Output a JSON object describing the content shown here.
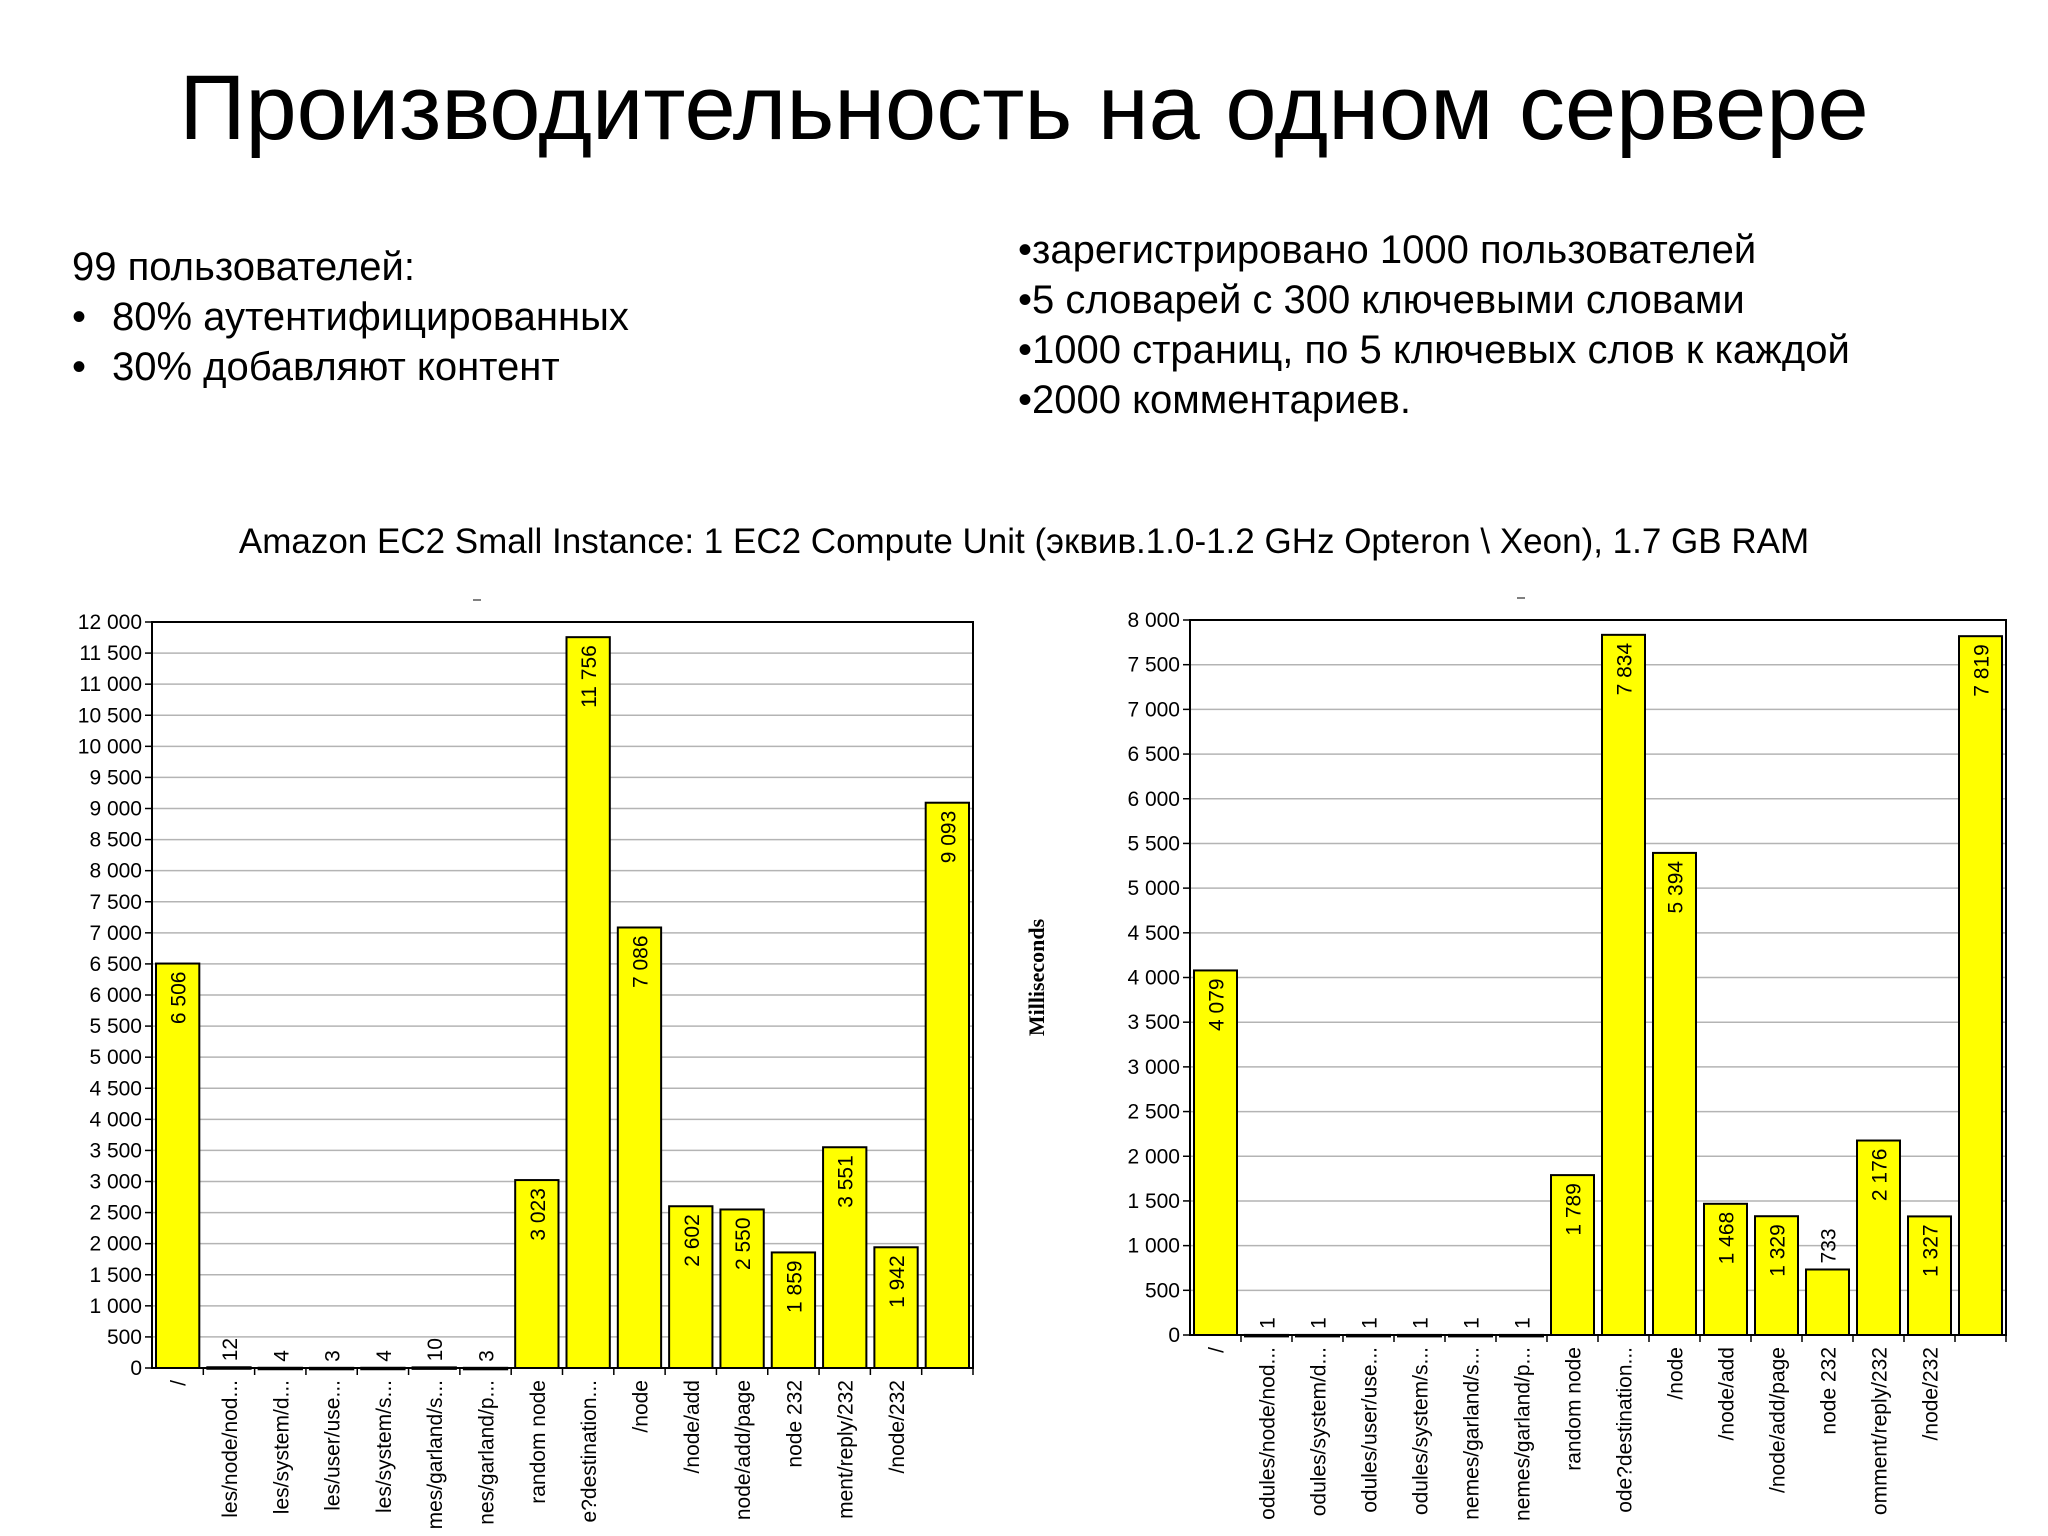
{
  "title": "Производительность на одном сервере",
  "left_list": {
    "heading": "99 пользователей:",
    "items": [
      "80% аутентифицированных",
      "30% добавляют контент"
    ]
  },
  "right_list": {
    "items": [
      "•зарегистрировано 1000 пользователей",
      "•5 словарей с 300 ключевыми словами",
      "•1000 страниц, по 5 ключевых слов к каждой",
      "•2000 комментариев."
    ]
  },
  "subtitle": "Amazon EC2 Small Instance: 1 EC2 Compute Unit (эквив.1.0-1.2 GHz Opteron \\ Xeon), 1.7 GB RAM",
  "colors": {
    "bar": "#ffff00",
    "grid": "#b4b4b4"
  },
  "chart_data": [
    {
      "type": "bar",
      "title": "",
      "xlabel": "",
      "ylabel": "",
      "ylim": [
        0,
        12000
      ],
      "ytick_step": 500,
      "grid": true,
      "categories": [
        "/",
        "les/node/nod...",
        "les/system/d...",
        "les/user/use...",
        "les/system/s...",
        "mes/garland/s...",
        "nes/garland/p...",
        "random node",
        "e?destination...",
        "/node",
        "/node/add",
        "node/add/page",
        "node 232",
        "ment/reply/232",
        "/node/232",
        ""
      ],
      "values": [
        6506,
        12,
        4,
        3,
        4,
        10,
        3,
        3023,
        11756,
        7086,
        2602,
        2550,
        1859,
        3551,
        1942,
        9093
      ],
      "value_labels": [
        "6 506",
        "12",
        "4",
        "3",
        "4",
        "10",
        "3",
        "3 023",
        "11 756",
        "7 086",
        "2 602",
        "2 550",
        "1 859",
        "3 551",
        "1 942",
        "9 093"
      ]
    },
    {
      "type": "bar",
      "title": "",
      "xlabel": "",
      "ylabel": "Milliseconds",
      "ylim": [
        0,
        8000
      ],
      "ytick_step": 500,
      "grid": true,
      "categories": [
        "/",
        "odules/node/nod...",
        "odules/system/d...",
        "odules/user/use...",
        "odules/system/s...",
        "nemes/garland/s...",
        "nemes/garland/p...",
        "random node",
        "ode?destination...",
        "/node",
        "/node/add",
        "/node/add/page",
        "node 232",
        "omment/reply/232",
        "/node/232",
        ""
      ],
      "values": [
        4079,
        1,
        1,
        1,
        1,
        1,
        1,
        1789,
        7834,
        5394,
        1468,
        1329,
        733,
        2176,
        1327,
        7819
      ],
      "value_labels": [
        "4 079",
        "1",
        "1",
        "1",
        "1",
        "1",
        "1",
        "1 789",
        "7 834",
        "5 394",
        "1 468",
        "1 329",
        "733",
        "2 176",
        "1 327",
        "7 819"
      ]
    }
  ]
}
